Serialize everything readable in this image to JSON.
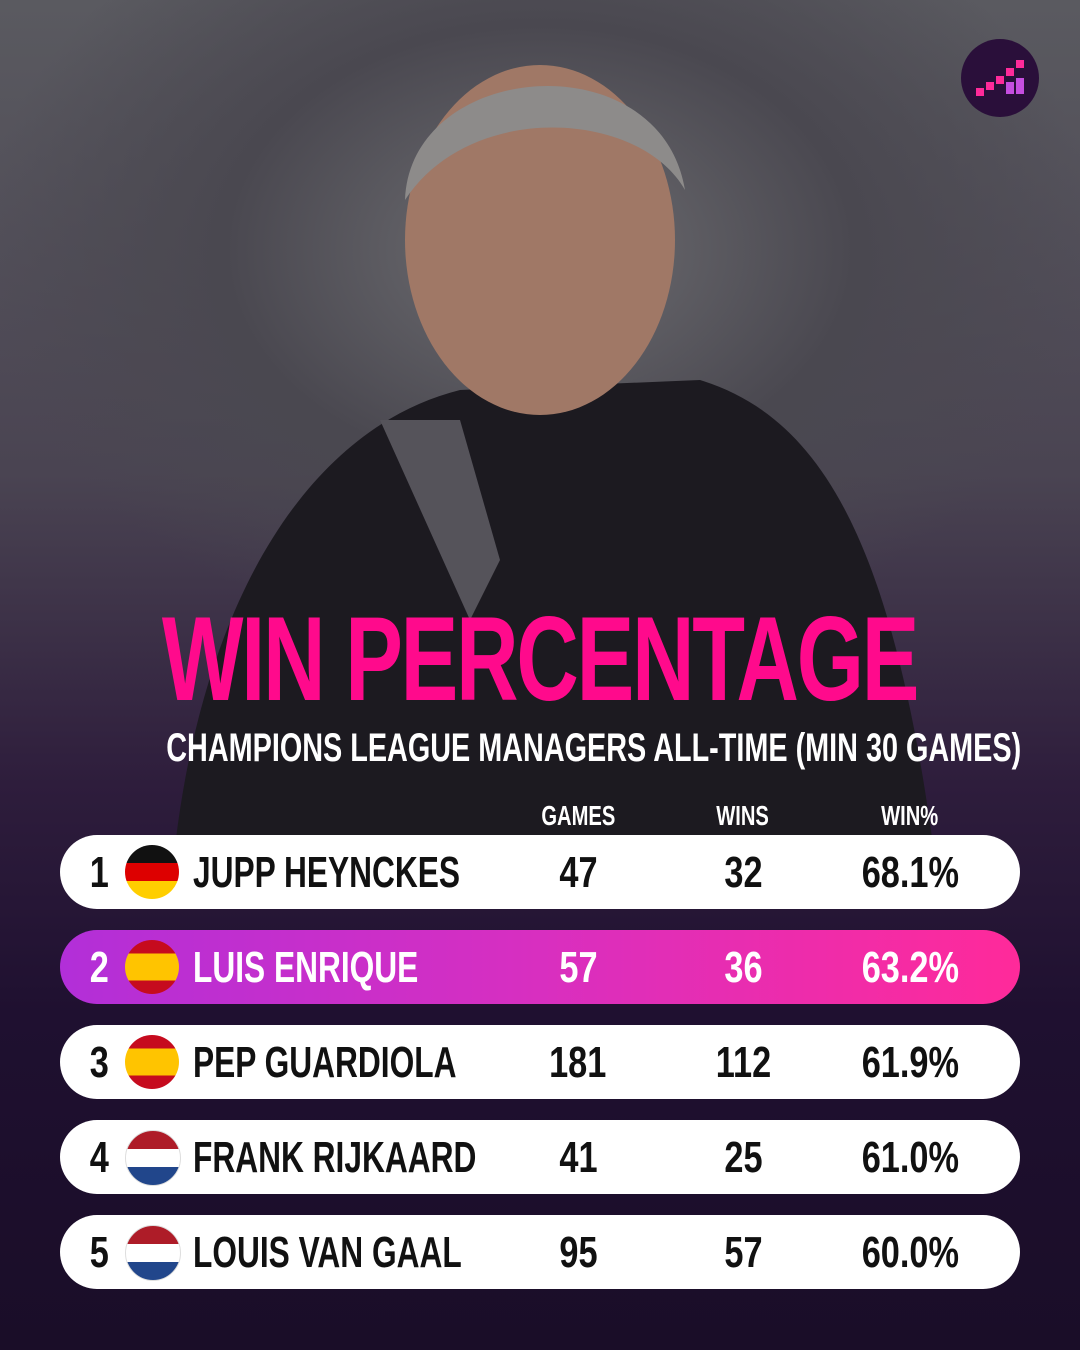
{
  "title": "WIN PERCENTAGE",
  "subtitle": "CHAMPIONS LEAGUE MANAGERS ALL-TIME (MIN 30 GAMES)",
  "table": {
    "columns": [
      "GAMES",
      "WINS",
      "WIN%"
    ],
    "rows": [
      {
        "rank": 1,
        "name": "JUPP HEYNCKES",
        "games": 47,
        "wins": 32,
        "win_pct": "68.1%"
      },
      {
        "rank": 2,
        "name": "LUIS ENRIQUE",
        "games": 57,
        "wins": 36,
        "win_pct": "63.2%"
      },
      {
        "rank": 3,
        "name": "PEP GUARDIOLA",
        "games": 181,
        "wins": 112,
        "win_pct": "61.9%"
      },
      {
        "rank": 4,
        "name": "FRANK RIJKAARD",
        "games": 41,
        "wins": 25,
        "win_pct": "61.0%"
      },
      {
        "rank": 5,
        "name": "LOUIS VAN GAAL",
        "games": 95,
        "wins": 57,
        "win_pct": "60.0%"
      }
    ]
  }
}
